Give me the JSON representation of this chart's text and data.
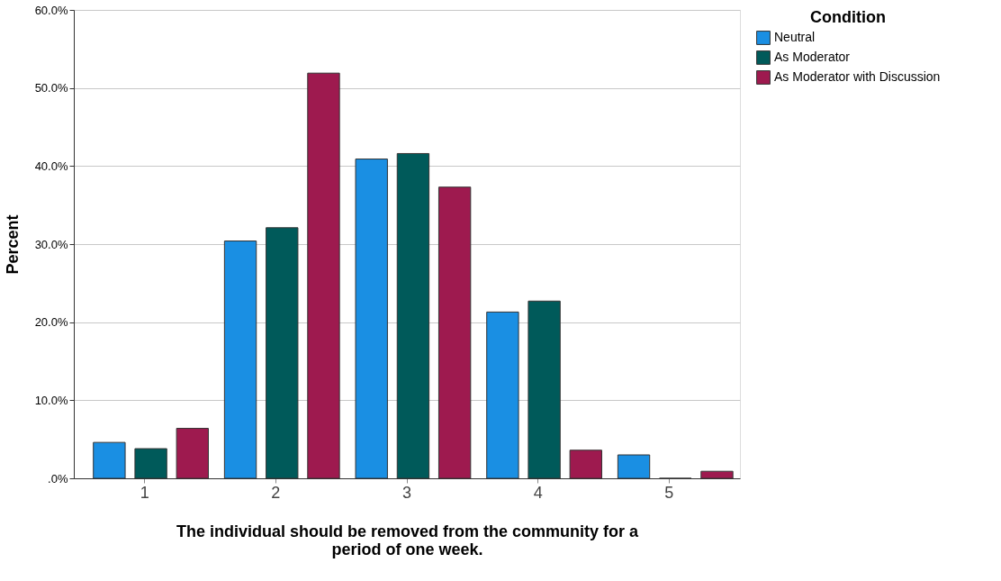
{
  "chart_data": {
    "type": "bar",
    "xlabel": "The individual should be removed from the community for a period of one week.",
    "ylabel": "Percent",
    "legend_title": "Condition",
    "categories": [
      "1",
      "2",
      "3",
      "4",
      "5"
    ],
    "series": [
      {
        "name": "Neutral",
        "color": "#1a8fe3",
        "values": [
          4.6,
          30.4,
          40.9,
          21.3,
          3.0
        ]
      },
      {
        "name": "As Moderator",
        "color": "#005a5a",
        "values": [
          3.8,
          32.1,
          41.6,
          22.7,
          0.0
        ]
      },
      {
        "name": "As Moderator with Discussion",
        "color": "#9e1a4f",
        "values": [
          6.4,
          51.9,
          37.3,
          3.6,
          0.9
        ]
      }
    ],
    "ylim": [
      0,
      60
    ],
    "yticks": [
      {
        "value": 0,
        "label": ".0%"
      },
      {
        "value": 10,
        "label": "10.0%"
      },
      {
        "value": 20,
        "label": "20.0%"
      },
      {
        "value": 30,
        "label": "30.0%"
      },
      {
        "value": 40,
        "label": "40.0%"
      },
      {
        "value": 50,
        "label": "50.0%"
      },
      {
        "value": 60,
        "label": "60.0%"
      }
    ],
    "grid": "y",
    "legend": "top right"
  }
}
